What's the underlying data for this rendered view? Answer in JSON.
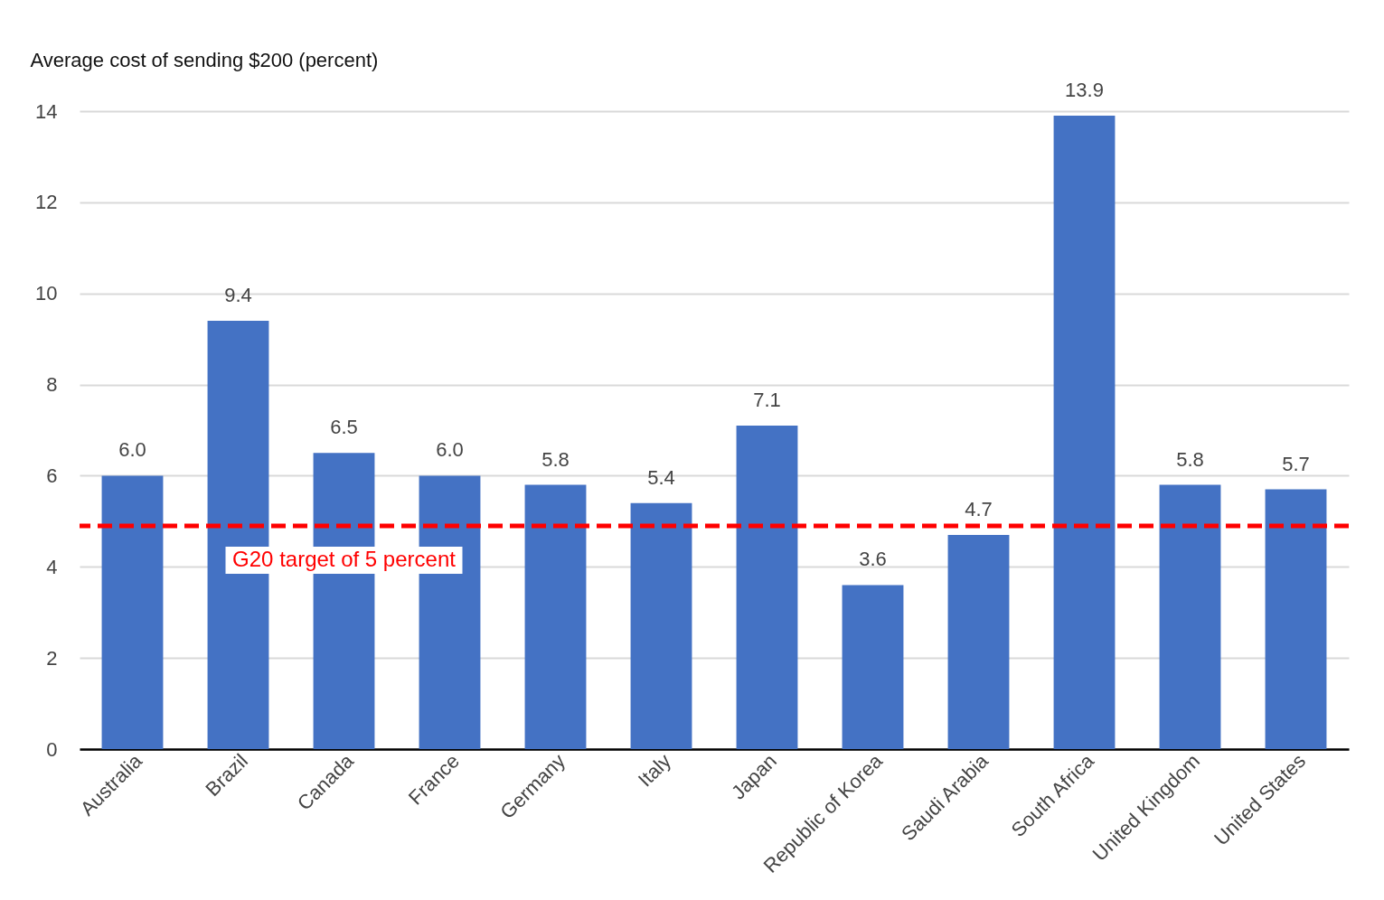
{
  "chart_data": {
    "type": "bar",
    "ylabel": "Average cost of sending $200 (percent)",
    "categories": [
      "Australia",
      "Brazil",
      "Canada",
      "France",
      "Germany",
      "Italy",
      "Japan",
      "Republic of Korea",
      "Saudi Arabia",
      "South Africa",
      "United Kingdom",
      "United States"
    ],
    "values": [
      6.0,
      9.4,
      6.5,
      6.0,
      5.8,
      5.4,
      7.1,
      3.6,
      4.7,
      13.9,
      5.8,
      5.7
    ],
    "value_labels": [
      "6.0",
      "9.4",
      "6.5",
      "6.0",
      "5.8",
      "5.4",
      "7.1",
      "3.6",
      "4.7",
      "13.9",
      "5.8",
      "5.7"
    ],
    "color": "#4472c4",
    "ylim": [
      0,
      14
    ],
    "yticks": [
      0,
      2,
      4,
      6,
      8,
      10,
      12,
      14
    ],
    "grid": "y",
    "ref_lines": [
      {
        "axis": "y",
        "value": 4.9,
        "label": "G20 target of 5 percent",
        "color": "#ff0000",
        "line_style": "dashed"
      }
    ]
  }
}
